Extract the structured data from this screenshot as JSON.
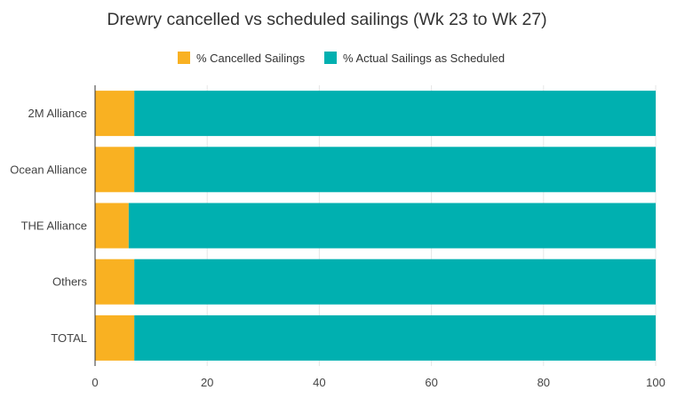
{
  "chart_data": {
    "type": "bar",
    "orientation": "horizontal",
    "stacked": true,
    "title": "Drewry cancelled vs scheduled sailings (Wk 23 to Wk 27)",
    "categories": [
      "2M Alliance",
      "Ocean Alliance",
      "THE Alliance",
      "Others",
      "TOTAL"
    ],
    "series": [
      {
        "name": "% Cancelled Sailings",
        "color": "#F9B122",
        "values": [
          7,
          7,
          6,
          7,
          7
        ]
      },
      {
        "name": "% Actual Sailings as Scheduled",
        "color": "#00B0B0",
        "values": [
          93,
          93,
          94,
          93,
          93
        ]
      }
    ],
    "xlim": [
      0,
      100
    ],
    "xticks": [
      0,
      20,
      40,
      60,
      80,
      100
    ],
    "grid": true,
    "legend_position": "top"
  }
}
